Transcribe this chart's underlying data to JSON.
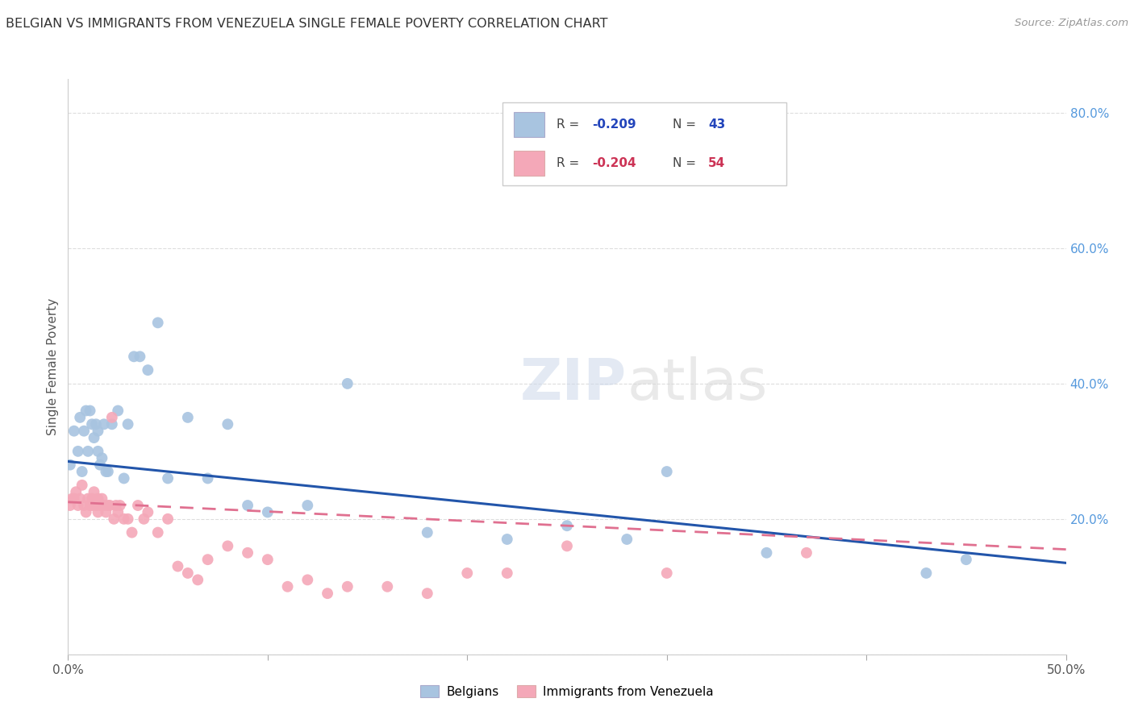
{
  "title": "BELGIAN VS IMMIGRANTS FROM VENEZUELA SINGLE FEMALE POVERTY CORRELATION CHART",
  "source": "Source: ZipAtlas.com",
  "ylabel": "Single Female Poverty",
  "xlim": [
    0,
    0.5
  ],
  "ylim": [
    0,
    0.85
  ],
  "belgians_R": -0.209,
  "belgians_N": 43,
  "venezuela_R": -0.204,
  "venezuela_N": 54,
  "belgian_color": "#a8c4e0",
  "venezuela_color": "#f4a8b8",
  "belgian_line_color": "#2255aa",
  "venezuela_line_color": "#e07090",
  "watermark_zip": "ZIP",
  "watermark_atlas": "atlas",
  "grid_color": "#dddddd",
  "background_color": "#ffffff",
  "belgians_x": [
    0.001,
    0.003,
    0.005,
    0.006,
    0.007,
    0.008,
    0.009,
    0.01,
    0.011,
    0.012,
    0.013,
    0.014,
    0.015,
    0.015,
    0.016,
    0.017,
    0.018,
    0.019,
    0.02,
    0.022,
    0.025,
    0.028,
    0.03,
    0.033,
    0.036,
    0.04,
    0.045,
    0.05,
    0.06,
    0.07,
    0.08,
    0.09,
    0.1,
    0.12,
    0.14,
    0.18,
    0.22,
    0.25,
    0.28,
    0.3,
    0.35,
    0.43,
    0.45
  ],
  "belgians_y": [
    0.28,
    0.33,
    0.3,
    0.35,
    0.27,
    0.33,
    0.36,
    0.3,
    0.36,
    0.34,
    0.32,
    0.34,
    0.3,
    0.33,
    0.28,
    0.29,
    0.34,
    0.27,
    0.27,
    0.34,
    0.36,
    0.26,
    0.34,
    0.44,
    0.44,
    0.42,
    0.49,
    0.26,
    0.35,
    0.26,
    0.34,
    0.22,
    0.21,
    0.22,
    0.4,
    0.18,
    0.17,
    0.19,
    0.17,
    0.27,
    0.15,
    0.12,
    0.14
  ],
  "venezuela_x": [
    0.001,
    0.002,
    0.003,
    0.004,
    0.005,
    0.006,
    0.007,
    0.008,
    0.009,
    0.01,
    0.011,
    0.012,
    0.012,
    0.013,
    0.014,
    0.015,
    0.015,
    0.016,
    0.017,
    0.018,
    0.019,
    0.02,
    0.021,
    0.022,
    0.023,
    0.024,
    0.025,
    0.026,
    0.028,
    0.03,
    0.032,
    0.035,
    0.038,
    0.04,
    0.045,
    0.05,
    0.055,
    0.06,
    0.065,
    0.07,
    0.08,
    0.09,
    0.1,
    0.11,
    0.12,
    0.13,
    0.14,
    0.16,
    0.18,
    0.2,
    0.22,
    0.25,
    0.3,
    0.37
  ],
  "venezuela_y": [
    0.22,
    0.23,
    0.23,
    0.24,
    0.22,
    0.23,
    0.25,
    0.22,
    0.21,
    0.23,
    0.22,
    0.23,
    0.22,
    0.24,
    0.22,
    0.21,
    0.23,
    0.22,
    0.23,
    0.22,
    0.21,
    0.22,
    0.22,
    0.35,
    0.2,
    0.22,
    0.21,
    0.22,
    0.2,
    0.2,
    0.18,
    0.22,
    0.2,
    0.21,
    0.18,
    0.2,
    0.13,
    0.12,
    0.11,
    0.14,
    0.16,
    0.15,
    0.14,
    0.1,
    0.11,
    0.09,
    0.1,
    0.1,
    0.09,
    0.12,
    0.12,
    0.16,
    0.12,
    0.15
  ],
  "belgian_line_x0": 0.0,
  "belgian_line_y0": 0.285,
  "belgian_line_x1": 0.5,
  "belgian_line_y1": 0.135,
  "venezuela_line_x0": 0.0,
  "venezuela_line_y0": 0.225,
  "venezuela_line_x1": 0.5,
  "venezuela_line_y1": 0.155
}
